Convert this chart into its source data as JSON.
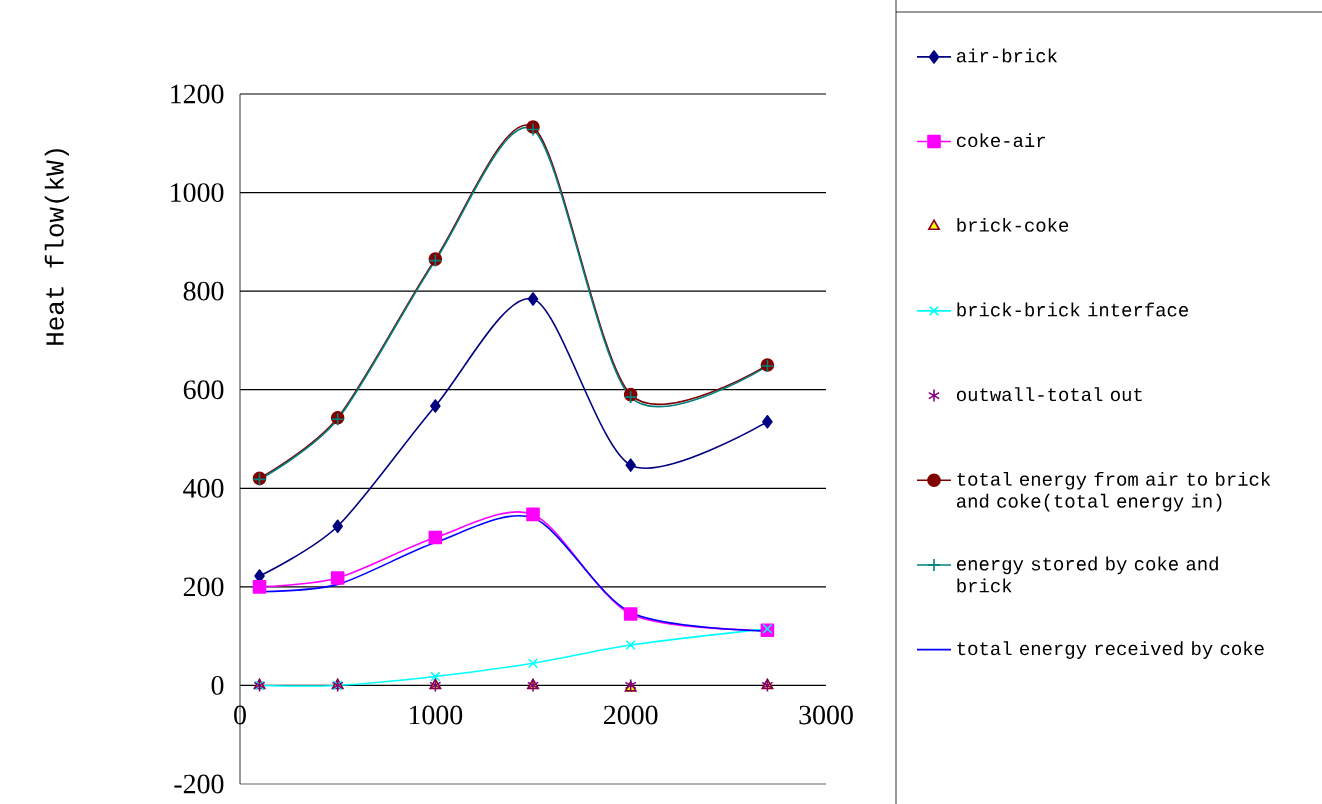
{
  "chart_data": {
    "type": "line",
    "ylabel": "Heat flow(kW)",
    "x": [
      100,
      500,
      1000,
      1500,
      2000,
      2700
    ],
    "xlim": [
      0,
      3000
    ],
    "xticks": [
      0,
      1000,
      2000,
      3000
    ],
    "ylim": [
      -200,
      1200
    ],
    "yticks": [
      -200,
      0,
      200,
      400,
      600,
      800,
      1000,
      1200
    ],
    "grid": "y",
    "legend": "right",
    "series": [
      {
        "name": "air-brick",
        "color": "#000080",
        "marker": "diamond",
        "values": [
          222,
          323,
          567,
          784,
          447,
          535
        ]
      },
      {
        "name": "coke-air",
        "color": "#ff00ff",
        "marker": "square",
        "values": [
          200,
          218,
          300,
          347,
          145,
          112
        ]
      },
      {
        "name": "brick-coke",
        "type": "scatter",
        "color": "#ffff00",
        "marker": "triangle",
        "values": [
          0,
          0,
          0,
          0,
          -5,
          0
        ]
      },
      {
        "name": "brick-brick interface",
        "color": "#00ffff",
        "marker": "cross",
        "values": [
          0,
          0,
          18,
          45,
          82,
          115
        ]
      },
      {
        "name": "outwall-total out",
        "type": "scatter",
        "color": "#800080",
        "marker": "cross",
        "values": [
          0,
          0,
          0,
          0,
          0,
          0
        ]
      },
      {
        "name": "total energy from  air to brick and coke(total energy in)",
        "color": "#800000",
        "marker": "circle",
        "values": [
          420,
          543,
          865,
          1133,
          590,
          650
        ]
      },
      {
        "name": "energy stored by coke and brick",
        "color": "#008080",
        "marker": "plus",
        "values": [
          418,
          540,
          862,
          1128,
          585,
          648
        ]
      },
      {
        "name": "total energy received by coke",
        "color": "#0000ff",
        "marker": "none",
        "values": [
          190,
          205,
          290,
          340,
          148,
          110
        ]
      }
    ]
  }
}
